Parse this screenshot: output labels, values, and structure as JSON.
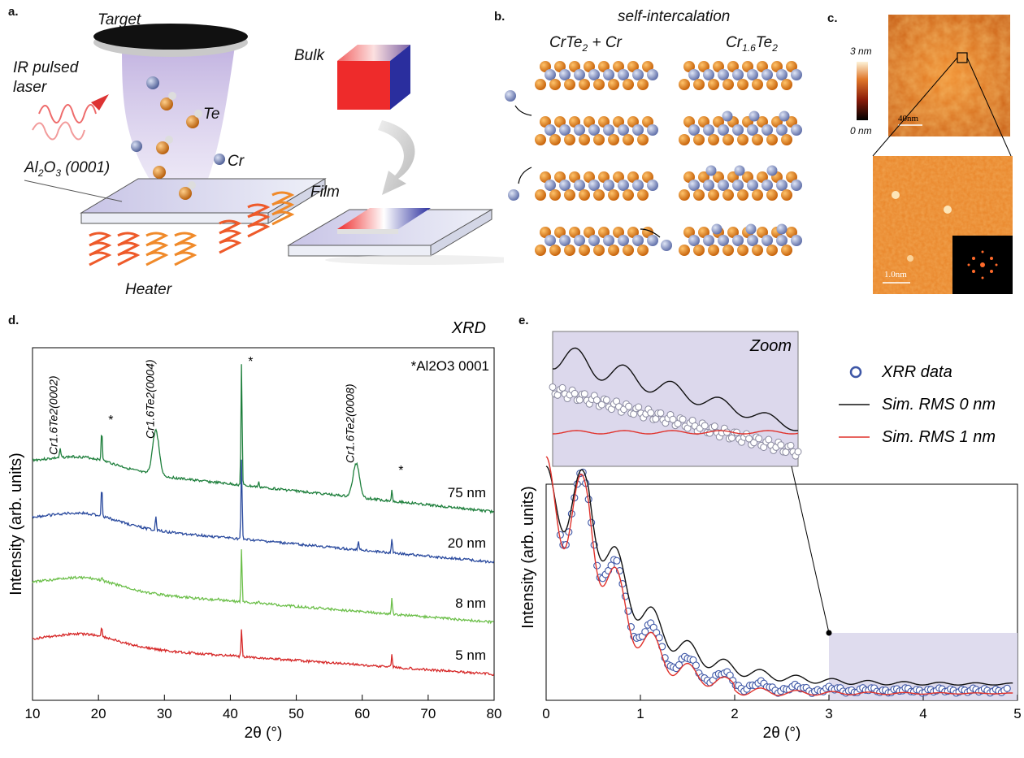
{
  "panels": {
    "a": {
      "label": "a.",
      "target": "Target",
      "laser": "IR pulsed laser",
      "te": "Te",
      "cr": "Cr",
      "substrate": "Al2O3 (0001)",
      "heater": "Heater",
      "bulk": "Bulk",
      "film": "Film"
    },
    "b": {
      "label": "b.",
      "title": "self-intercalation",
      "left": "CrTe2 + Cr",
      "right": "Cr1.6Te2"
    },
    "c": {
      "label": "c.",
      "scale_max": "3 nm",
      "scale_min": "0 nm",
      "scalebar_large": "40nm",
      "scalebar_small": "1.0nm"
    },
    "d": {
      "label": "d."
    },
    "e": {
      "label": "e."
    }
  },
  "colors": {
    "d_75nm": "#1e7f3c",
    "d_20nm": "#2a4a9e",
    "d_8nm": "#6cbf4a",
    "d_5nm": "#d62828",
    "e_data": "#3d56a6",
    "e_sim0": "#111111",
    "e_sim1": "#e0322c",
    "zoom_bg": "#dcd8ec",
    "afm": "#d9761e"
  },
  "chart_data": [
    {
      "type": "line",
      "title": "XRD",
      "xlabel": "2θ (°)",
      "ylabel": "Intensity (arb. units)",
      "xlim": [
        10,
        80
      ],
      "xticks": [
        10,
        20,
        30,
        40,
        50,
        60,
        70,
        80
      ],
      "legend_note": "*Al2O3 0001",
      "annotations": [
        {
          "text": "Cr1.6Te2(0002)",
          "x": 14
        },
        {
          "text": "Cr1.6Te2(0004)",
          "x": 28.7
        },
        {
          "text": "Cr1.6Te2(0008)",
          "x": 59
        },
        {
          "text": "*",
          "x": 20.5
        },
        {
          "text": "*",
          "x": 41.7
        },
        {
          "text": "*",
          "x": 64.5
        }
      ],
      "series": [
        {
          "name": "75 nm",
          "peaks": [
            [
              14.2,
              0.1
            ],
            [
              20.5,
              0.36
            ],
            [
              28.7,
              0.5
            ],
            [
              41.7,
              1.4
            ],
            [
              44.3,
              0.05
            ],
            [
              59.1,
              0.38
            ],
            [
              64.5,
              0.12
            ]
          ]
        },
        {
          "name": "20 nm",
          "peaks": [
            [
              20.5,
              0.34
            ],
            [
              28.7,
              0.17
            ],
            [
              41.7,
              0.9
            ],
            [
              59.4,
              0.1
            ],
            [
              64.5,
              0.16
            ]
          ]
        },
        {
          "name": "8 nm",
          "peaks": [
            [
              20.5,
              0.03
            ],
            [
              38.2,
              0.03
            ],
            [
              41.7,
              0.6
            ],
            [
              44.3,
              0.03
            ],
            [
              64.5,
              0.18
            ]
          ]
        },
        {
          "name": "5 nm",
          "peaks": [
            [
              20.5,
              0.12
            ],
            [
              41.7,
              0.3
            ],
            [
              64.5,
              0.15
            ]
          ]
        }
      ]
    },
    {
      "type": "line",
      "xlabel": "2θ (°)",
      "ylabel": "Intensity (arb. units)",
      "xlim": [
        0,
        5
      ],
      "xticks": [
        0,
        1,
        2,
        3,
        4,
        5
      ],
      "zoom_label": "Zoom",
      "zoom_xrange": [
        3,
        5
      ],
      "series": [
        {
          "name": "XRR data",
          "style": "open-circles"
        },
        {
          "name": "Sim. RMS 0 nm",
          "style": "line"
        },
        {
          "name": "Sim. RMS 1 nm",
          "style": "line"
        }
      ],
      "critical_angle": 0.45
    }
  ]
}
